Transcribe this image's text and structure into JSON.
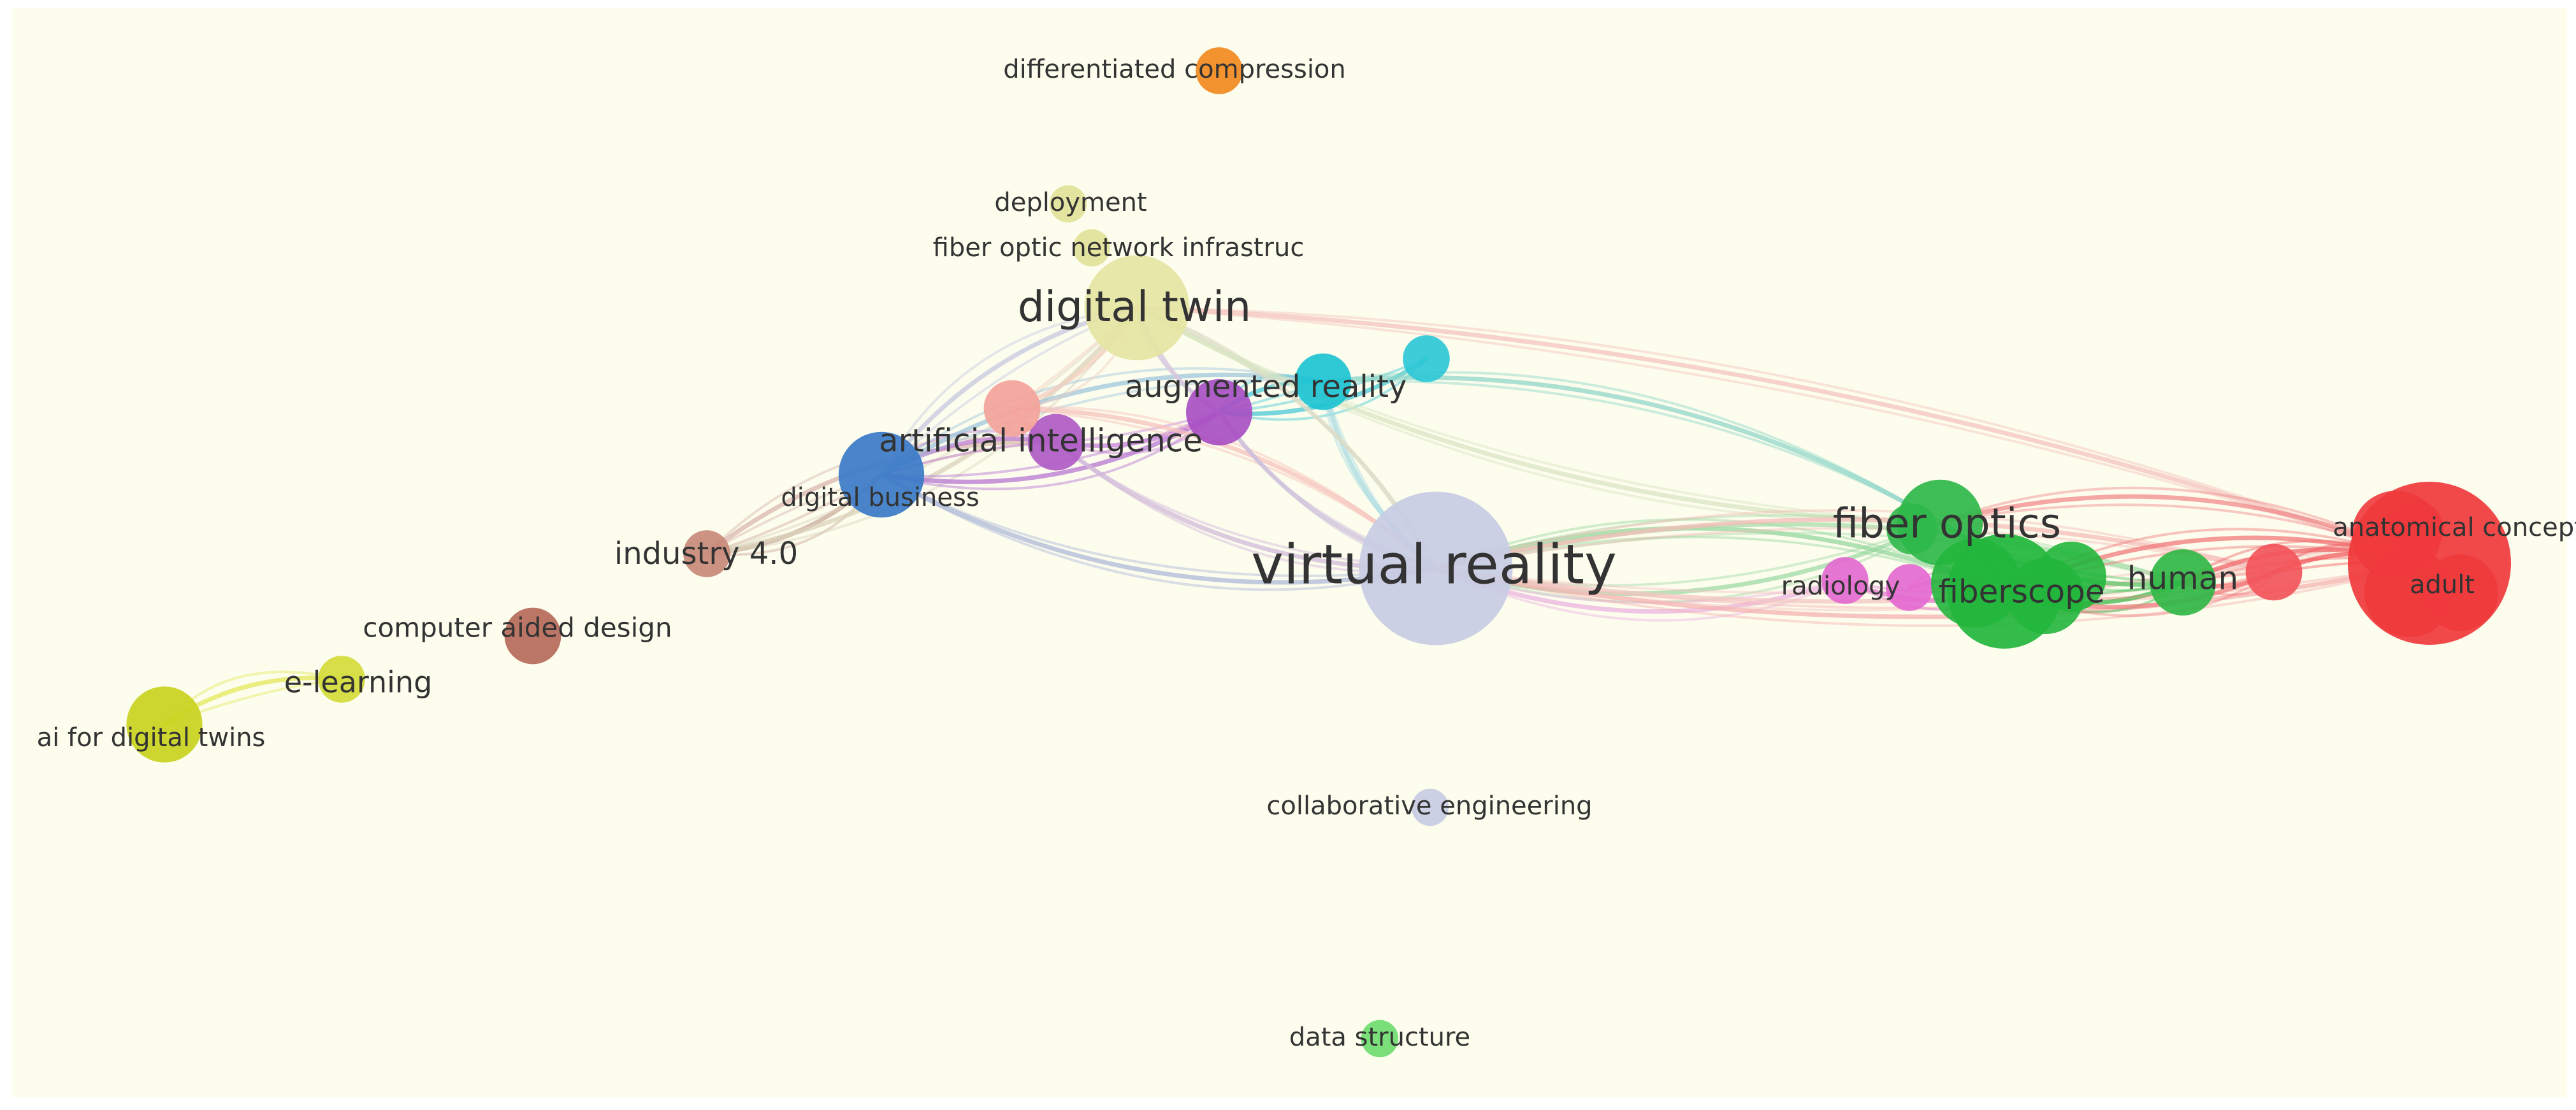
{
  "network": {
    "nodes": [
      {
        "id": "differentiated-compression",
        "label": "differentiated compression",
        "color": "#f28a1e",
        "weight": 3
      },
      {
        "id": "deployment",
        "label": "deployment",
        "color": "#e2e29a",
        "weight": 2
      },
      {
        "id": "fiber-optic-network",
        "label": "fiber optic network infrastruc",
        "color": "#e2e29a",
        "weight": 2
      },
      {
        "id": "digital-twin",
        "label": "digital twin",
        "color": "#e5e5a3",
        "weight": 9
      },
      {
        "id": "augmented-reality",
        "label": "augmented reality",
        "color": "#a84fc3",
        "weight": 5
      },
      {
        "id": "cyan-node",
        "label": "",
        "color": "#1dc3d2",
        "weight": 4
      },
      {
        "id": "cyan-node-2",
        "label": "",
        "color": "#2ec8d6",
        "weight": 3
      },
      {
        "id": "artificial-intelligence",
        "label": "artificial intelligence",
        "color": "#b05bc6",
        "weight": 4
      },
      {
        "id": "salmon-node",
        "label": "",
        "color": "#f3a39a",
        "weight": 4
      },
      {
        "id": "digital-business",
        "label": "digital business",
        "color": "#3b7bc8",
        "weight": 7
      },
      {
        "id": "industry-4",
        "label": "industry 4.0",
        "color": "#c98a78",
        "weight": 3
      },
      {
        "id": "computer-aided-design",
        "label": "computer aided design",
        "color": "#b56a5a",
        "weight": 4
      },
      {
        "id": "e-learning",
        "label": "e-learning",
        "color": "#d4db3a",
        "weight": 3
      },
      {
        "id": "ai-for-digital-twins",
        "label": "ai for digital twins",
        "color": "#c9d21e",
        "weight": 6
      },
      {
        "id": "virtual-reality",
        "label": "virtual reality",
        "color": "#c8cce3",
        "weight": 14
      },
      {
        "id": "fiber-optics",
        "label": "fiber optics",
        "color": "#2fb84a",
        "weight": 7
      },
      {
        "id": "radiology",
        "label": "radiology",
        "color": "#e46ad0",
        "weight": 3
      },
      {
        "id": "pink-node",
        "label": "",
        "color": "#e46ad0",
        "weight": 3
      },
      {
        "id": "fiberscope",
        "label": "fiberscope",
        "color": "#22b63c",
        "weight": 10
      },
      {
        "id": "human",
        "label": "human",
        "color": "#30b946",
        "weight": 5
      },
      {
        "id": "red-node",
        "label": "",
        "color": "#f2555a",
        "weight": 4
      },
      {
        "id": "adult",
        "label": "adult",
        "color": "#f03a3c",
        "weight": 15
      },
      {
        "id": "anatomical-concepts",
        "label": "anatomical concepts",
        "color": "#f03a3c",
        "weight": 4
      },
      {
        "id": "collaborative-engineering",
        "label": "collaborative engineering",
        "color": "#c8cce3",
        "weight": 2
      },
      {
        "id": "data-structure",
        "label": "data structure",
        "color": "#6fdc6f",
        "weight": 2
      }
    ],
    "edges": [
      {
        "from": "ai-for-digital-twins",
        "to": "e-learning",
        "color": "#e3e85a"
      },
      {
        "from": "industry-4",
        "to": "digital-business",
        "color": "#c9a99a"
      },
      {
        "from": "industry-4",
        "to": "artificial-intelligence",
        "color": "#d8b6ad"
      },
      {
        "from": "industry-4",
        "to": "digital-twin",
        "color": "#d9d2bb"
      },
      {
        "from": "digital-business",
        "to": "artificial-intelligence",
        "color": "#c07fd6"
      },
      {
        "from": "digital-business",
        "to": "augmented-reality",
        "color": "#b576d1"
      },
      {
        "from": "digital-business",
        "to": "digital-twin",
        "color": "#c6c7df"
      },
      {
        "from": "digital-business",
        "to": "virtual-reality",
        "color": "#aeb8d8"
      },
      {
        "from": "digital-business",
        "to": "cyan-node",
        "color": "#9fc6dc"
      },
      {
        "from": "artificial-intelligence",
        "to": "augmented-reality",
        "color": "#c582d9"
      },
      {
        "from": "artificial-intelligence",
        "to": "salmon-node",
        "color": "#f3b1a8"
      },
      {
        "from": "artificial-intelligence",
        "to": "virtual-reality",
        "color": "#d0b9d9"
      },
      {
        "from": "salmon-node",
        "to": "virtual-reality",
        "color": "#f6c2bb"
      },
      {
        "from": "salmon-node",
        "to": "digital-twin",
        "color": "#f2cfc0"
      },
      {
        "from": "augmented-reality",
        "to": "cyan-node",
        "color": "#4ccad6"
      },
      {
        "from": "augmented-reality",
        "to": "cyan-node-2",
        "color": "#48c8d4"
      },
      {
        "from": "augmented-reality",
        "to": "digital-twin",
        "color": "#d6c6dd"
      },
      {
        "from": "augmented-reality",
        "to": "virtual-reality",
        "color": "#cdbfdc"
      },
      {
        "from": "cyan-node",
        "to": "fiber-optics",
        "color": "#8fd6c8"
      },
      {
        "from": "cyan-node",
        "to": "virtual-reality",
        "color": "#a8d9e0"
      },
      {
        "from": "digital-twin",
        "to": "virtual-reality",
        "color": "#dcdcc7"
      },
      {
        "from": "digital-twin",
        "to": "fiber-optics",
        "color": "#d8e4c2"
      },
      {
        "from": "digital-twin",
        "to": "adult",
        "color": "#f3c3bd"
      },
      {
        "from": "virtual-reality",
        "to": "fiber-optics",
        "color": "#9fd9a7"
      },
      {
        "from": "virtual-reality",
        "to": "fiberscope",
        "color": "#96d79e"
      },
      {
        "from": "virtual-reality",
        "to": "radiology",
        "color": "#e9b3df"
      },
      {
        "from": "virtual-reality",
        "to": "human",
        "color": "#a5dca9"
      },
      {
        "from": "virtual-reality",
        "to": "adult",
        "color": "#f4b2b0"
      },
      {
        "from": "virtual-reality",
        "to": "red-node",
        "color": "#f4bcb8"
      },
      {
        "from": "virtual-reality",
        "to": "anatomical-concepts",
        "color": "#f3c6c2"
      },
      {
        "from": "fiber-optics",
        "to": "fiberscope",
        "color": "#4cc45c"
      },
      {
        "from": "fiber-optics",
        "to": "human",
        "color": "#5cc86a"
      },
      {
        "from": "fiber-optics",
        "to": "adult",
        "color": "#f08a8b"
      },
      {
        "from": "radiology",
        "to": "fiberscope",
        "color": "#e07fd0"
      },
      {
        "from": "pink-node",
        "to": "fiberscope",
        "color": "#e07fd0"
      },
      {
        "from": "fiberscope",
        "to": "human",
        "color": "#3fbf51"
      },
      {
        "from": "fiberscope",
        "to": "adult",
        "color": "#f07a7b"
      },
      {
        "from": "fiberscope",
        "to": "red-node",
        "color": "#f08486"
      },
      {
        "from": "human",
        "to": "adult",
        "color": "#f26a6c"
      },
      {
        "from": "human",
        "to": "red-node",
        "color": "#f2787a"
      },
      {
        "from": "red-node",
        "to": "adult",
        "color": "#f25a5d"
      },
      {
        "from": "anatomical-concepts",
        "to": "adult",
        "color": "#f26466"
      }
    ]
  }
}
